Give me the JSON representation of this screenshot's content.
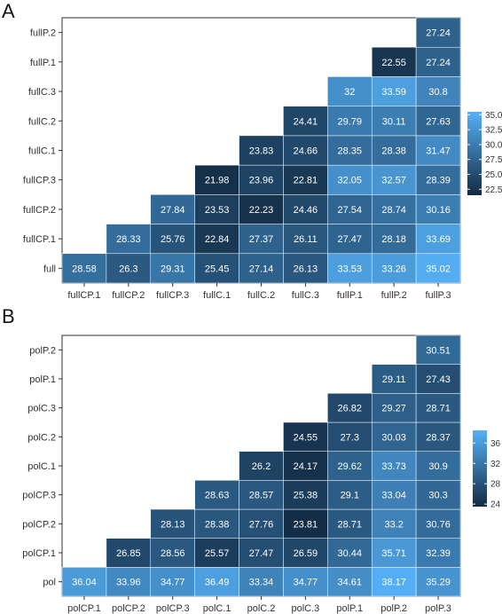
{
  "chart_data": [
    {
      "type": "heatmap",
      "panel_label": "A",
      "x_categories": [
        "fullCP.1",
        "fullCP.2",
        "fullCP.3",
        "fullC.1",
        "fullC.2",
        "fullC.3",
        "fullP.1",
        "fullP.2",
        "fullP.3"
      ],
      "y_categories": [
        "full",
        "fullCP.1",
        "fullCP.2",
        "fullCP.3",
        "fullC.1",
        "fullC.2",
        "fullC.3",
        "fullP.1",
        "fullP.2"
      ],
      "values": [
        [
          28.58,
          26.3,
          29.31,
          25.45,
          27.14,
          26.13,
          33.53,
          33.26,
          35.02
        ],
        [
          null,
          28.33,
          25.76,
          22.84,
          27.37,
          26.11,
          27.47,
          28.18,
          33.69
        ],
        [
          null,
          null,
          27.84,
          23.53,
          22.23,
          24.46,
          27.54,
          28.74,
          30.16
        ],
        [
          null,
          null,
          null,
          21.98,
          23.96,
          22.81,
          32.05,
          32.57,
          28.39
        ],
        [
          null,
          null,
          null,
          null,
          23.83,
          24.66,
          28.35,
          28.38,
          31.47
        ],
        [
          null,
          null,
          null,
          null,
          null,
          24.41,
          29.79,
          30.11,
          27.63
        ],
        [
          null,
          null,
          null,
          null,
          null,
          null,
          32,
          33.59,
          30.8
        ],
        [
          null,
          null,
          null,
          null,
          null,
          null,
          null,
          22.55,
          27.24
        ],
        [
          null,
          null,
          null,
          null,
          null,
          null,
          null,
          null,
          27.24
        ]
      ],
      "color_range": [
        21.5,
        35.5
      ],
      "legend_ticks": [
        "22.5",
        "25.0",
        "27.5",
        "30.0",
        "32.5",
        "35.0"
      ],
      "colors": {
        "low": "#132b43",
        "high": "#56b1f7"
      }
    },
    {
      "type": "heatmap",
      "panel_label": "B",
      "x_categories": [
        "polCP.1",
        "polCP.2",
        "polCP.3",
        "polC.1",
        "polC.2",
        "polC.3",
        "polP.1",
        "polP.2",
        "polP.3"
      ],
      "y_categories": [
        "pol",
        "polCP.1",
        "polCP.2",
        "polCP.3",
        "polC.1",
        "polC.2",
        "polC.3",
        "polP.1",
        "polP.2"
      ],
      "values": [
        [
          36.04,
          33.96,
          34.77,
          36.49,
          33.34,
          34.77,
          34.61,
          38.17,
          35.29
        ],
        [
          null,
          26.85,
          28.56,
          25.57,
          27.47,
          26.59,
          30.44,
          35.71,
          32.39
        ],
        [
          null,
          null,
          28.13,
          28.38,
          27.76,
          23.81,
          28.71,
          33.2,
          30.76
        ],
        [
          null,
          null,
          null,
          28.63,
          28.57,
          25.38,
          29.1,
          33.04,
          30.3
        ],
        [
          null,
          null,
          null,
          null,
          26.2,
          24.17,
          29.62,
          33.73,
          30.9
        ],
        [
          null,
          null,
          null,
          null,
          null,
          24.55,
          27.3,
          30.03,
          28.37
        ],
        [
          null,
          null,
          null,
          null,
          null,
          null,
          26.82,
          29.27,
          28.71
        ],
        [
          null,
          null,
          null,
          null,
          null,
          null,
          null,
          29.11,
          27.43
        ],
        [
          null,
          null,
          null,
          null,
          null,
          null,
          null,
          null,
          30.51
        ]
      ],
      "color_range": [
        23.5,
        38.5
      ],
      "legend_ticks": [
        "24",
        "28",
        "32",
        "36"
      ],
      "colors": {
        "low": "#132b43",
        "high": "#56b1f7"
      }
    }
  ]
}
